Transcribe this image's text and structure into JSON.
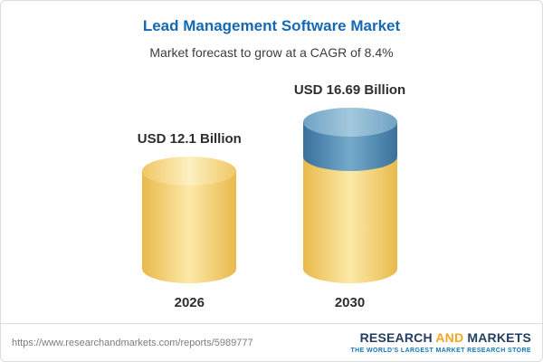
{
  "title": "Lead Management Software Market",
  "subtitle": "Market forecast to grow at a CAGR of 8.4%",
  "chart_data": {
    "type": "bar",
    "categories": [
      "2026",
      "2030"
    ],
    "values": [
      12.1,
      16.69
    ],
    "value_labels": [
      "USD 12.1 Billion",
      "USD 16.69 Billion"
    ],
    "unit": "USD Billion",
    "title": "Lead Management Software Market",
    "subtitle": "Market forecast to grow at a CAGR of 8.4%",
    "cagr_pct": 8.4,
    "legend_position": "none",
    "grid": false,
    "bar_style": "cylinder",
    "bar_colors": [
      "#f2c75e",
      "#f2c75e + #4d84ab top segment"
    ]
  },
  "colors": {
    "title_blue": "#1569b3",
    "bar_yellow": "#f2c75e",
    "bar_blue": "#4d84ab",
    "logo_navy": "#243f60",
    "logo_orange": "#f5a623",
    "tagline_blue": "#1577b6"
  },
  "footer": {
    "url": "https://www.researchandmarkets.com/reports/5989777",
    "logo": {
      "part1": "RESEARCH",
      "part2": "AND",
      "part3": "MARKETS",
      "tagline": "THE WORLD'S LARGEST MARKET RESEARCH STORE"
    }
  }
}
